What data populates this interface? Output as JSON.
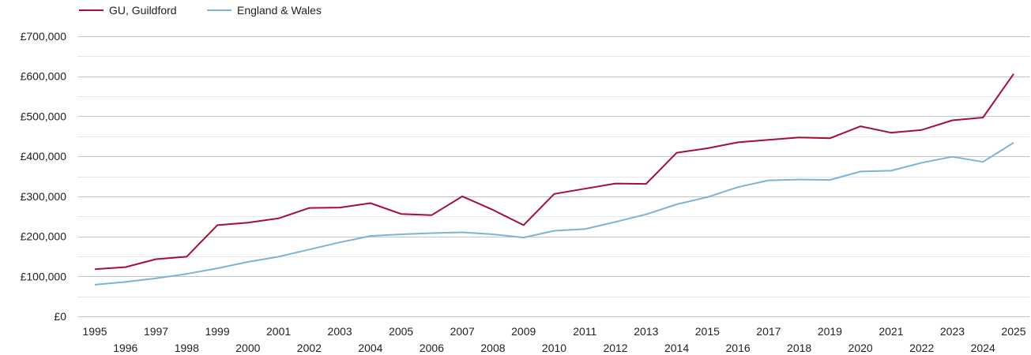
{
  "chart_data": {
    "type": "line",
    "title": "",
    "xlabel": "",
    "ylabel": "",
    "x": [
      1995,
      1996,
      1997,
      1998,
      1999,
      2000,
      2001,
      2002,
      2003,
      2004,
      2005,
      2006,
      2007,
      2008,
      2009,
      2010,
      2011,
      2012,
      2013,
      2014,
      2015,
      2016,
      2017,
      2018,
      2019,
      2020,
      2021,
      2022,
      2023,
      2024,
      2025
    ],
    "xlim": [
      1995,
      2025
    ],
    "ylim": [
      0,
      700000
    ],
    "yticks": [
      0,
      100000,
      200000,
      300000,
      400000,
      500000,
      600000,
      700000
    ],
    "ytick_labels": [
      "£0",
      "£100,000",
      "£200,000",
      "£300,000",
      "£400,000",
      "£500,000",
      "£600,000",
      "£700,000"
    ],
    "grid": true,
    "legend_position": "top-left",
    "series": [
      {
        "name": "GU, Guildford",
        "color": "#a50f34",
        "values": [
          118000,
          123000,
          143000,
          149000,
          228000,
          234000,
          245000,
          271000,
          272000,
          283000,
          256000,
          253000,
          300000,
          266000,
          228000,
          306000,
          319000,
          332000,
          331000,
          409000,
          420000,
          435000,
          441000,
          447000,
          445000,
          475000,
          459000,
          466000,
          490000,
          497000,
          606000
        ]
      },
      {
        "name": "England & Wales",
        "color": "#7fb2d6",
        "values": [
          79000,
          86000,
          95000,
          106000,
          120000,
          136000,
          149000,
          167000,
          185000,
          201000,
          205000,
          208000,
          210000,
          205000,
          197000,
          214000,
          218000,
          236000,
          255000,
          280000,
          298000,
          323000,
          340000,
          342000,
          341000,
          362000,
          364000,
          384000,
          399000,
          386000,
          434000
        ]
      }
    ]
  }
}
